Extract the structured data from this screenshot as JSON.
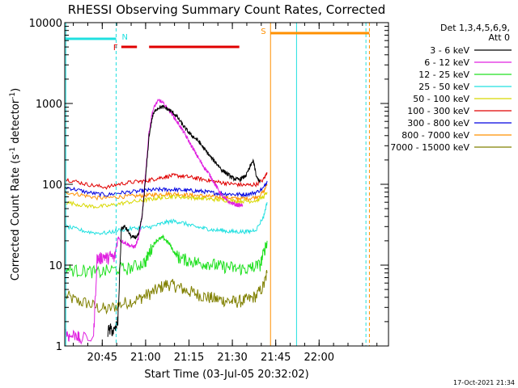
{
  "chart_data": {
    "type": "line",
    "title": "RHESSI Observing Summary Count Rates, Corrected",
    "xlabel": "Start Time (03-Jul-05 20:32:02)",
    "ylabel_main": "Corrected Count Rate (s",
    "ylabel_sup": "-1",
    "ylabel_mid": " detector",
    "ylabel_sup2": "-1",
    "ylabel_end": ")",
    "yscale": "log",
    "xlim": [
      20.5339,
      22.4
    ],
    "ylim": [
      1,
      10000
    ],
    "x_ticks": [
      {
        "value": 20.75,
        "label": "20:45"
      },
      {
        "value": 21.0,
        "label": "21:00"
      },
      {
        "value": 21.25,
        "label": "21:15"
      },
      {
        "value": 21.5,
        "label": "21:30"
      },
      {
        "value": 21.75,
        "label": "21:45"
      },
      {
        "value": 22.0,
        "label": "22:00"
      }
    ],
    "y_ticks": [
      {
        "value": 1,
        "label": "1"
      },
      {
        "value": 10,
        "label": "10"
      },
      {
        "value": 100,
        "label": "100"
      },
      {
        "value": 1000,
        "label": "1000"
      },
      {
        "value": 10000,
        "label": "10000"
      }
    ],
    "legend": {
      "header": [
        "Det 1,3,4,5,6,9,",
        "Att 0"
      ],
      "placement": "right",
      "entries": [
        {
          "label": "3 - 6 keV",
          "color": "#000000"
        },
        {
          "label": "6 - 12 keV",
          "color": "#e020e0"
        },
        {
          "label": "12 - 25 keV",
          "color": "#20e020"
        },
        {
          "label": "25 - 50 keV",
          "color": "#20e0e0"
        },
        {
          "label": "50 - 100 keV",
          "color": "#d8d800"
        },
        {
          "label": "100 - 300 keV",
          "color": "#e00000"
        },
        {
          "label": "300 - 800 keV",
          "color": "#0000e0"
        },
        {
          "label": "800 - 7000 keV",
          "color": "#ff9000"
        },
        {
          "label": "7000 - 15000 keV",
          "color": "#808000"
        }
      ]
    },
    "flags": [
      {
        "label": "N",
        "color": "#20e0e0",
        "segments": [
          [
            20.5339,
            20.83
          ]
        ],
        "marker_x": 20.83,
        "end_line_x": 20.83
      },
      {
        "label": "F",
        "color": "#e00000",
        "segments": [
          [
            20.86,
            20.95
          ],
          [
            21.02,
            21.54
          ]
        ]
      },
      {
        "label": "S",
        "color": "#ff9000",
        "segments": [
          [
            21.72,
            22.29
          ]
        ],
        "marker_x": 21.72,
        "end_line_x": 22.29
      }
    ],
    "flag_lines": [
      {
        "x": 20.83,
        "color": "#20e0e0",
        "style": "dashed"
      },
      {
        "x": 21.72,
        "color": "#ff9000",
        "style": "solid"
      },
      {
        "x": 21.87,
        "color": "#20e0e0",
        "style": "solid"
      },
      {
        "x": 22.27,
        "color": "#20e0e0",
        "style": "dashed"
      },
      {
        "x": 22.29,
        "color": "#ff9000",
        "style": "dashed"
      },
      {
        "x": 20.54,
        "color": "#20e0e0",
        "style": "solid"
      }
    ],
    "series": [
      {
        "name": "3 - 6 keV",
        "color": "#000000",
        "x": [
          20.78,
          20.8,
          20.82,
          20.84,
          20.86,
          20.88,
          20.9,
          20.92,
          20.94,
          20.96,
          20.98,
          21.0,
          21.02,
          21.04,
          21.06,
          21.08,
          21.1,
          21.12,
          21.14,
          21.16,
          21.18,
          21.2,
          21.22,
          21.24,
          21.26,
          21.28,
          21.3,
          21.32,
          21.34,
          21.36,
          21.38,
          21.4,
          21.42,
          21.44,
          21.46,
          21.48,
          21.5,
          21.52,
          21.54,
          21.56,
          21.58,
          21.6,
          21.62,
          21.64,
          21.66
        ],
        "y": [
          1.5,
          1.6,
          1.5,
          2,
          28,
          30,
          26,
          22,
          22,
          24,
          40,
          120,
          400,
          700,
          850,
          900,
          900,
          870,
          820,
          760,
          690,
          600,
          520,
          460,
          410,
          380,
          350,
          310,
          270,
          240,
          210,
          190,
          170,
          150,
          140,
          130,
          120,
          115,
          115,
          120,
          130,
          160,
          200,
          120,
          110
        ]
      },
      {
        "name": "6 - 12 keV",
        "color": "#e020e0",
        "x": [
          20.54,
          20.56,
          20.6,
          20.62,
          20.7,
          20.72,
          20.74,
          20.76,
          20.78,
          20.8,
          20.82,
          20.84,
          20.86,
          20.88,
          20.9,
          20.92,
          20.94,
          20.96,
          20.98,
          21.0,
          21.02,
          21.04,
          21.06,
          21.08,
          21.1,
          21.12,
          21.14,
          21.16,
          21.18,
          21.2,
          21.22,
          21.24,
          21.26,
          21.28,
          21.3,
          21.32,
          21.34,
          21.36,
          21.38,
          21.4,
          21.42,
          21.44,
          21.46,
          21.48,
          21.5,
          21.52,
          21.54,
          21.56
        ],
        "y": [
          1.5,
          1.3,
          1.4,
          1.2,
          1.3,
          12,
          12,
          13,
          12,
          13,
          12,
          22,
          20,
          19,
          18,
          17,
          17,
          22,
          40,
          140,
          450,
          800,
          1000,
          1100,
          1000,
          900,
          800,
          700,
          600,
          520,
          440,
          370,
          310,
          260,
          220,
          185,
          160,
          140,
          120,
          100,
          85,
          73,
          65,
          60,
          58,
          56,
          55,
          55
        ]
      },
      {
        "name": "12 - 25 keV",
        "color": "#20e020",
        "x": [
          20.54,
          20.6,
          20.66,
          20.72,
          20.78,
          20.84,
          20.9,
          20.96,
          21.0,
          21.02,
          21.04,
          21.06,
          21.08,
          21.1,
          21.12,
          21.14,
          21.16,
          21.18,
          21.2,
          21.24,
          21.28,
          21.32,
          21.36,
          21.4,
          21.44,
          21.48,
          21.52,
          21.56,
          21.6,
          21.62,
          21.66,
          21.68,
          21.7
        ],
        "y": [
          9,
          8.5,
          8.5,
          8,
          8.5,
          9,
          9,
          10,
          11,
          14,
          17,
          20,
          21,
          22,
          20,
          18,
          15,
          13,
          12,
          11.5,
          11,
          10.5,
          10.5,
          10,
          9.5,
          9.5,
          9,
          9,
          9,
          9.5,
          10,
          14,
          20
        ]
      },
      {
        "name": "25 - 50 keV",
        "color": "#20e0e0",
        "x": [
          20.54,
          20.6,
          20.66,
          20.72,
          20.78,
          20.84,
          20.9,
          20.96,
          21.0,
          21.04,
          21.08,
          21.12,
          21.16,
          21.2,
          21.24,
          21.28,
          21.32,
          21.36,
          21.4,
          21.44,
          21.48,
          21.52,
          21.56,
          21.6,
          21.64,
          21.68,
          21.7
        ],
        "y": [
          30,
          28,
          26,
          25,
          25,
          27,
          28,
          29,
          29,
          30,
          32,
          34,
          35,
          34,
          32,
          30,
          29,
          28,
          27,
          27,
          26,
          26,
          26,
          26,
          28,
          40,
          60
        ]
      },
      {
        "name": "50 - 100 keV",
        "color": "#d8d800",
        "x": [
          20.54,
          20.6,
          20.66,
          20.72,
          20.78,
          20.84,
          20.9,
          20.96,
          21.0,
          21.04,
          21.08,
          21.12,
          21.16,
          21.2,
          21.24,
          21.28,
          21.32,
          21.36,
          21.4,
          21.44,
          21.48,
          21.52,
          21.56,
          21.6,
          21.64,
          21.68,
          21.7
        ],
        "y": [
          60,
          57,
          54,
          53,
          54,
          57,
          60,
          62,
          64,
          66,
          68,
          70,
          71,
          70,
          69,
          68,
          67,
          66,
          65,
          64,
          63,
          62,
          62,
          62,
          63,
          70,
          80
        ]
      },
      {
        "name": "100 - 300 keV",
        "color": "#e00000",
        "x": [
          20.54,
          20.6,
          20.66,
          20.72,
          20.78,
          20.84,
          20.9,
          20.96,
          21.0,
          21.04,
          21.08,
          21.12,
          21.16,
          21.2,
          21.24,
          21.28,
          21.32,
          21.36,
          21.4,
          21.44,
          21.48,
          21.52,
          21.56,
          21.6,
          21.64,
          21.68,
          21.7
        ],
        "y": [
          115,
          108,
          100,
          95,
          92,
          100,
          105,
          108,
          110,
          115,
          120,
          125,
          128,
          127,
          124,
          120,
          116,
          112,
          108,
          105,
          102,
          100,
          98,
          98,
          100,
          115,
          140
        ]
      },
      {
        "name": "300 - 800 keV",
        "color": "#0000e0",
        "x": [
          20.54,
          20.6,
          20.66,
          20.72,
          20.78,
          20.84,
          20.9,
          20.96,
          21.0,
          21.04,
          21.08,
          21.12,
          21.16,
          21.2,
          21.24,
          21.28,
          21.32,
          21.36,
          21.4,
          21.44,
          21.48,
          21.52,
          21.56,
          21.6,
          21.64,
          21.68,
          21.7
        ],
        "y": [
          92,
          86,
          80,
          76,
          74,
          78,
          80,
          82,
          84,
          85,
          86,
          86,
          86,
          85,
          84,
          83,
          82,
          80,
          78,
          77,
          76,
          75,
          75,
          76,
          80,
          90,
          110
        ]
      },
      {
        "name": "800 - 7000 keV",
        "color": "#ff9000",
        "x": [
          20.54,
          20.6,
          20.66,
          20.72,
          20.78,
          20.84,
          20.9,
          20.96,
          21.0,
          21.04,
          21.08,
          21.12,
          21.16,
          21.2,
          21.24,
          21.28,
          21.32,
          21.36,
          21.4,
          21.44,
          21.48,
          21.52,
          21.56,
          21.6,
          21.64,
          21.68,
          21.7
        ],
        "y": [
          80,
          76,
          72,
          68,
          68,
          70,
          71,
          72,
          73,
          74,
          75,
          76,
          76,
          75,
          74,
          73,
          72,
          71,
          70,
          69,
          68,
          67,
          67,
          67,
          70,
          80,
          100
        ]
      },
      {
        "name": "7000 - 15000 keV",
        "color": "#808000",
        "x": [
          20.54,
          20.6,
          20.66,
          20.72,
          20.78,
          20.84,
          20.9,
          20.96,
          21.0,
          21.04,
          21.08,
          21.12,
          21.16,
          21.2,
          21.24,
          21.28,
          21.32,
          21.36,
          21.4,
          21.44,
          21.48,
          21.52,
          21.56,
          21.6,
          21.64,
          21.68,
          21.7
        ],
        "y": [
          4.2,
          3.6,
          3.4,
          3.0,
          2.8,
          3.2,
          3.5,
          3.8,
          4.2,
          4.6,
          5.2,
          5.8,
          5.6,
          5.2,
          4.8,
          4.5,
          4.2,
          4.0,
          3.8,
          3.7,
          3.6,
          3.5,
          3.6,
          3.8,
          4.2,
          5.5,
          8
        ]
      }
    ],
    "footer_date": "17-Oct-2021 21:34"
  }
}
